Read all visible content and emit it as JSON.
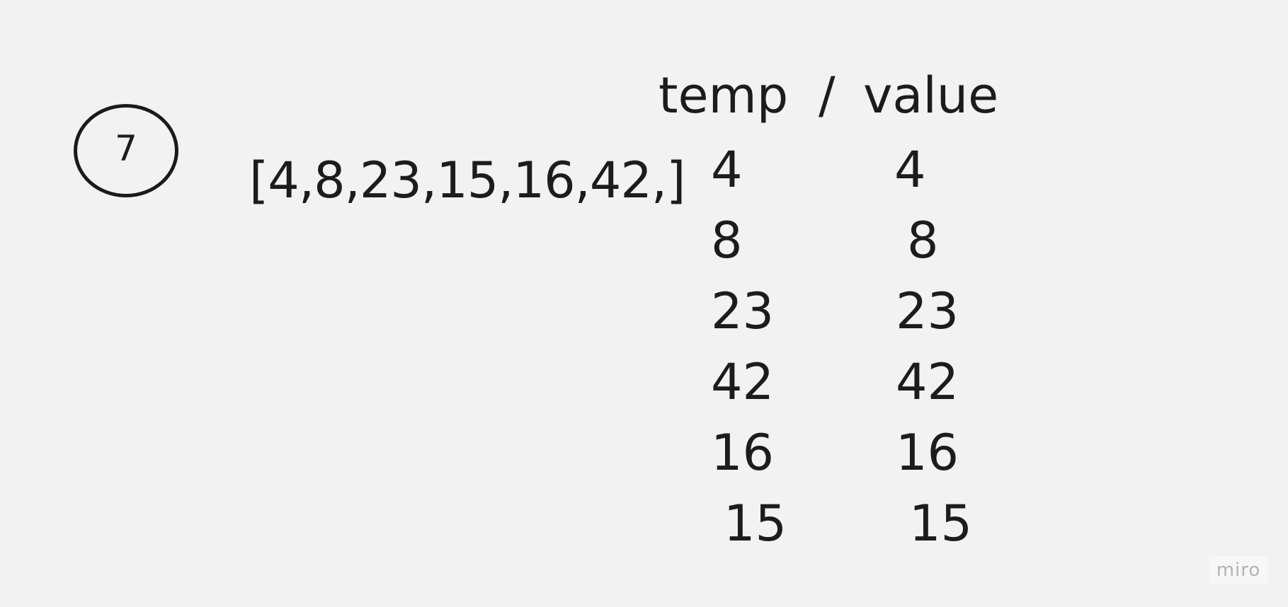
{
  "step": {
    "number": "7"
  },
  "array_text": "[4,8,23,15,16,42,]",
  "table": {
    "header_temp": "temp",
    "header_separator": "/",
    "header_value": "value",
    "rows": [
      {
        "temp": "4",
        "value": "4"
      },
      {
        "temp": "8",
        "value": "8"
      },
      {
        "temp": "23",
        "value": "23"
      },
      {
        "temp": "42",
        "value": "42"
      },
      {
        "temp": "16",
        "value": "16"
      },
      {
        "temp": "15",
        "value": "15"
      }
    ]
  },
  "branding": {
    "badge_text": "miro"
  }
}
